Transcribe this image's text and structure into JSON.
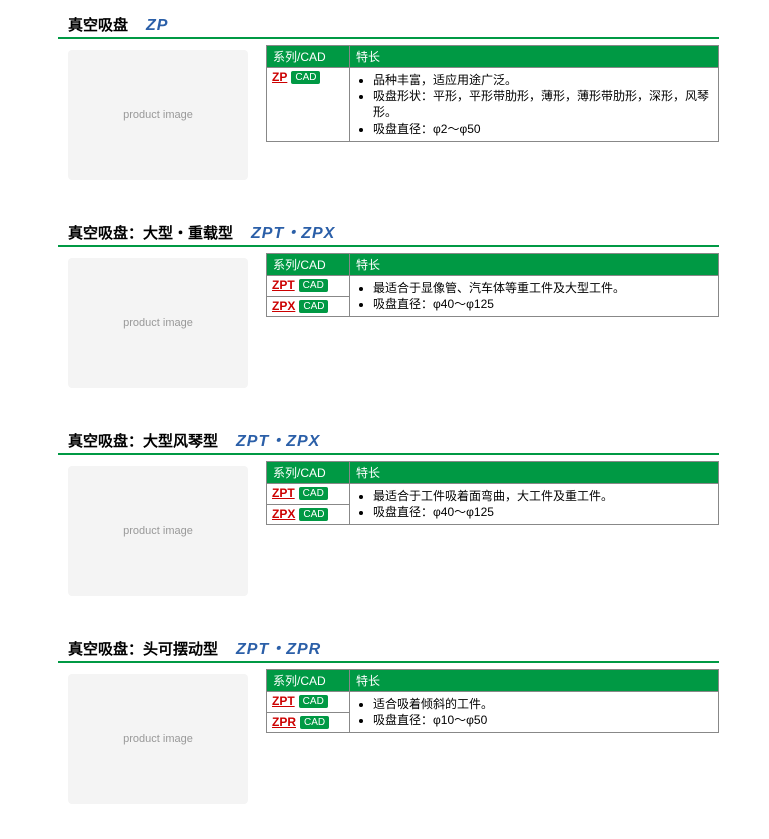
{
  "colors": {
    "accent_green": "#009944",
    "link_red": "#cc0000",
    "model_blue": "#2b5fa8",
    "border_gray": "#888888",
    "background": "#ffffff"
  },
  "headers": {
    "series_cad": "系列/CAD",
    "features": "特长"
  },
  "cad_label": "CAD",
  "sections": [
    {
      "title": "真空吸盘",
      "model": "ZP",
      "image_alt": "product image",
      "rows": [
        {
          "series": "ZP",
          "cad": true
        }
      ],
      "features": [
        "品种丰富，适应用途广泛。",
        "吸盘形状：平形，平形带肋形，薄形，薄形带肋形，深形，风琴形。",
        "吸盘直径：φ2～φ50"
      ]
    },
    {
      "title": "真空吸盘：大型・重载型",
      "model": "ZPT・ZPX",
      "image_alt": "product image",
      "rows": [
        {
          "series": "ZPT",
          "cad": true
        },
        {
          "series": "ZPX",
          "cad": true
        }
      ],
      "features": [
        "最适合于显像管、汽车体等重工件及大型工件。",
        "吸盘直径：φ40～φ125"
      ]
    },
    {
      "title": "真空吸盘：大型风琴型",
      "model": "ZPT・ZPX",
      "image_alt": "product image",
      "rows": [
        {
          "series": "ZPT",
          "cad": true
        },
        {
          "series": "ZPX",
          "cad": true
        }
      ],
      "features": [
        "最适合于工件吸着面弯曲，大工件及重工件。",
        "吸盘直径：φ40～φ125"
      ]
    },
    {
      "title": "真空吸盘：头可摆动型",
      "model": "ZPT・ZPR",
      "image_alt": "product image",
      "rows": [
        {
          "series": "ZPT",
          "cad": true
        },
        {
          "series": "ZPR",
          "cad": true
        }
      ],
      "features": [
        "适合吸着倾斜的工件。",
        "吸盘直径：φ10～φ50"
      ]
    }
  ]
}
